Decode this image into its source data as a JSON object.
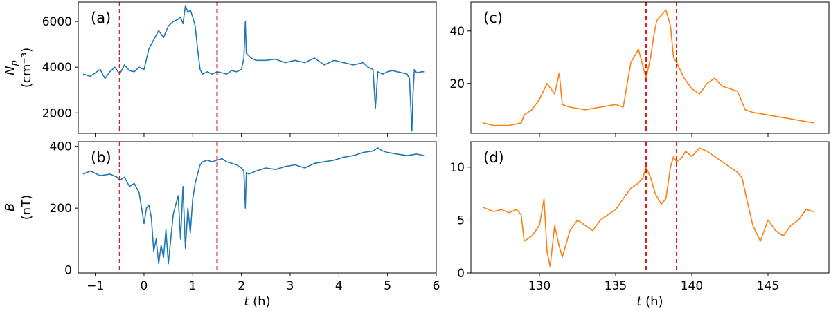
{
  "colors": {
    "blue": "#1f77b4",
    "orange": "#ff7f0e",
    "event": "#e41a1c"
  },
  "chart_data": [
    {
      "id": "a",
      "type": "line",
      "panel_label": "(a)",
      "ylabel": [
        "N_p",
        "(cm⁻³)"
      ],
      "xlabel": "",
      "xlim": [
        -1.35,
        6.0
      ],
      "ylim": [
        1100,
        6850
      ],
      "xticks": [
        -1,
        0,
        1,
        2,
        3,
        4,
        5,
        6
      ],
      "show_xticklabels": false,
      "yticks": [
        2000,
        4000,
        6000
      ],
      "vlines": [
        -0.5,
        1.5
      ],
      "color": "#1f77b4",
      "series": [
        {
          "x": [
            -1.25,
            -1.1,
            -1.0,
            -0.9,
            -0.8,
            -0.7,
            -0.6,
            -0.5,
            -0.4,
            -0.3,
            -0.2,
            -0.1,
            0.0,
            0.1,
            0.2,
            0.3,
            0.4,
            0.5,
            0.6,
            0.7,
            0.75,
            0.8,
            0.85,
            0.9,
            0.95,
            1.0,
            1.05,
            1.1,
            1.15,
            1.2,
            1.3,
            1.4,
            1.5,
            1.6,
            1.7,
            1.8,
            1.9,
            2.0,
            2.05,
            2.08,
            2.1,
            2.15,
            2.2,
            2.3,
            2.5,
            2.7,
            2.9,
            3.1,
            3.3,
            3.5,
            3.7,
            3.9,
            4.1,
            4.3,
            4.5,
            4.6,
            4.7,
            4.75,
            4.8,
            4.9,
            5.0,
            5.1,
            5.2,
            5.3,
            5.4,
            5.45,
            5.5,
            5.52,
            5.55,
            5.6,
            5.7,
            5.75
          ],
          "values": [
            3700,
            3600,
            3750,
            3900,
            3500,
            3800,
            4000,
            3700,
            4100,
            3850,
            3800,
            4000,
            3900,
            4800,
            5200,
            5600,
            5300,
            5800,
            6000,
            6100,
            6200,
            5900,
            6700,
            6400,
            6500,
            6200,
            5800,
            4800,
            3900,
            3700,
            3800,
            3700,
            3800,
            3750,
            3700,
            3850,
            3800,
            3900,
            4400,
            6000,
            4600,
            4500,
            4400,
            4300,
            4300,
            4350,
            4200,
            4300,
            4200,
            4400,
            4100,
            4300,
            4200,
            4100,
            4200,
            4000,
            3900,
            2200,
            3800,
            3700,
            3800,
            3850,
            3800,
            3750,
            3700,
            3500,
            1200,
            2700,
            3900,
            3750,
            3800,
            3800
          ]
        }
      ]
    },
    {
      "id": "b",
      "type": "line",
      "panel_label": "(b)",
      "ylabel": [
        "B",
        "(nT)"
      ],
      "xlabel": "t (h)",
      "xlim": [
        -1.35,
        6.0
      ],
      "ylim": [
        -10,
        415
      ],
      "xticks": [
        -1,
        0,
        1,
        2,
        3,
        4,
        5,
        6
      ],
      "show_xticklabels": true,
      "yticks": [
        0,
        200,
        400
      ],
      "vlines": [
        -0.5,
        1.5
      ],
      "color": "#1f77b4",
      "series": [
        {
          "x": [
            -1.25,
            -1.1,
            -0.9,
            -0.7,
            -0.55,
            -0.5,
            -0.4,
            -0.3,
            -0.2,
            -0.1,
            0.0,
            0.05,
            0.1,
            0.15,
            0.2,
            0.25,
            0.3,
            0.35,
            0.4,
            0.45,
            0.5,
            0.55,
            0.6,
            0.65,
            0.7,
            0.75,
            0.8,
            0.85,
            0.9,
            0.95,
            1.0,
            1.05,
            1.1,
            1.15,
            1.2,
            1.3,
            1.4,
            1.5,
            1.6,
            1.7,
            1.8,
            1.9,
            2.0,
            2.05,
            2.08,
            2.1,
            2.15,
            2.3,
            2.5,
            2.7,
            2.9,
            3.1,
            3.3,
            3.5,
            3.7,
            3.9,
            4.1,
            4.3,
            4.5,
            4.7,
            4.8,
            4.9,
            5.0,
            5.2,
            5.4,
            5.6,
            5.75
          ],
          "values": [
            310,
            320,
            305,
            310,
            300,
            290,
            300,
            270,
            280,
            250,
            150,
            200,
            210,
            170,
            60,
            100,
            20,
            80,
            40,
            130,
            20,
            100,
            180,
            210,
            240,
            100,
            270,
            70,
            200,
            120,
            230,
            280,
            310,
            340,
            350,
            355,
            350,
            355,
            360,
            350,
            345,
            340,
            330,
            320,
            200,
            315,
            310,
            320,
            330,
            325,
            335,
            340,
            330,
            345,
            350,
            355,
            365,
            370,
            380,
            385,
            395,
            385,
            380,
            375,
            370,
            375,
            370
          ]
        }
      ]
    },
    {
      "id": "c",
      "type": "line",
      "panel_label": "(c)",
      "ylabel": [],
      "xlabel": "",
      "xlim": [
        125.5,
        149.0
      ],
      "ylim": [
        1,
        51
      ],
      "xticks": [
        130,
        135,
        140,
        145
      ],
      "show_xticklabels": false,
      "yticks": [
        20,
        40
      ],
      "vlines": [
        137.0,
        139.0
      ],
      "color": "#ff7f0e",
      "series": [
        {
          "x": [
            126.3,
            127.0,
            128.0,
            128.8,
            129.0,
            129.5,
            130.0,
            130.5,
            131.0,
            131.3,
            131.5,
            132.0,
            133.0,
            134.0,
            135.0,
            135.5,
            136.0,
            136.5,
            137.0,
            137.3,
            137.5,
            137.7,
            138.0,
            138.3,
            138.6,
            138.8,
            139.0,
            139.5,
            140.0,
            140.5,
            141.0,
            141.5,
            142.0,
            142.5,
            143.0,
            143.3,
            143.5,
            144.0,
            145.0,
            146.0,
            147.0,
            148.0
          ],
          "values": [
            5,
            4,
            4,
            5,
            8,
            10,
            14,
            20,
            16,
            24,
            12,
            11,
            10,
            11,
            12,
            11,
            28,
            33,
            22,
            30,
            38,
            44,
            46,
            48,
            42,
            30,
            28,
            22,
            18,
            16,
            20,
            22,
            19,
            18,
            17,
            13,
            10,
            9,
            8,
            7,
            6,
            5
          ]
        }
      ]
    },
    {
      "id": "d",
      "type": "line",
      "panel_label": "(d)",
      "ylabel": [],
      "xlabel": "t (h)",
      "xlim": [
        125.5,
        149.0
      ],
      "ylim": [
        0,
        12.4
      ],
      "xticks": [
        130,
        135,
        140,
        145
      ],
      "show_xticklabels": true,
      "yticks": [
        0,
        5,
        10
      ],
      "vlines": [
        137.0,
        139.0
      ],
      "color": "#ff7f0e",
      "series": [
        {
          "x": [
            126.3,
            127.0,
            127.5,
            128.0,
            128.5,
            128.8,
            129.0,
            129.5,
            130.0,
            130.3,
            130.5,
            130.7,
            131.0,
            131.3,
            131.5,
            132.0,
            132.5,
            133.0,
            133.5,
            134.0,
            134.5,
            135.0,
            135.5,
            136.0,
            136.5,
            136.8,
            137.0,
            137.3,
            137.6,
            138.0,
            138.3,
            138.6,
            138.8,
            139.0,
            139.3,
            139.6,
            140.0,
            140.5,
            141.0,
            141.5,
            142.0,
            142.5,
            143.0,
            143.3,
            143.6,
            144.0,
            144.5,
            145.0,
            145.5,
            146.0,
            146.5,
            147.0,
            147.5,
            148.0
          ],
          "values": [
            6.2,
            5.8,
            6.0,
            5.7,
            6.0,
            5.5,
            3.0,
            3.5,
            4.5,
            7.0,
            2.0,
            0.6,
            4.5,
            2.5,
            1.5,
            4.0,
            5.0,
            4.5,
            4.0,
            5.0,
            5.5,
            6.0,
            7.0,
            8.0,
            8.5,
            9.0,
            10.0,
            9.0,
            7.5,
            6.5,
            7.0,
            10.0,
            11.0,
            10.5,
            10.8,
            11.5,
            11.0,
            11.8,
            11.5,
            11.0,
            10.5,
            10.0,
            9.5,
            9.0,
            7.0,
            4.5,
            3.0,
            5.0,
            4.0,
            3.5,
            4.5,
            5.0,
            6.0,
            5.8
          ]
        }
      ]
    }
  ]
}
